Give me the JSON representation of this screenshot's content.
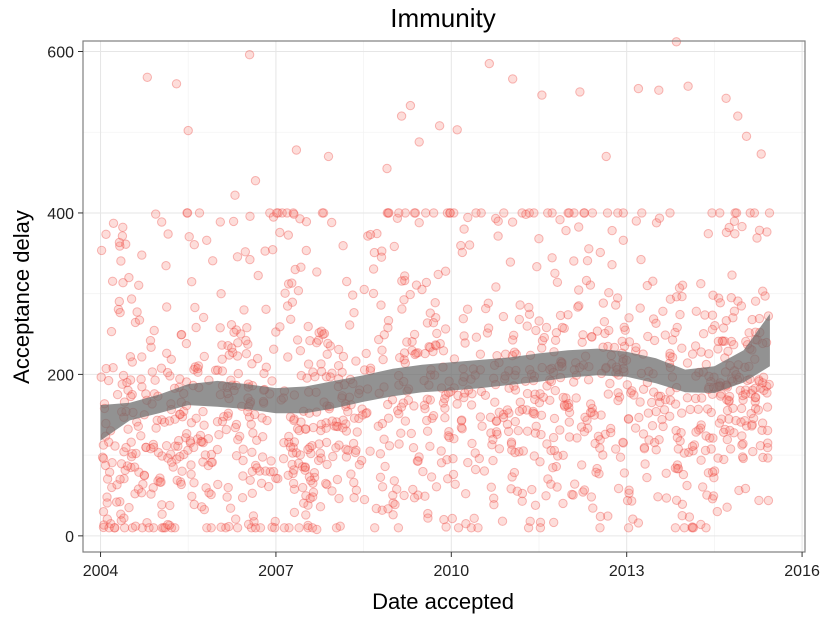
{
  "chart_data": {
    "type": "scatter",
    "title": "Immunity",
    "xlabel": "Date accepted",
    "ylabel": "Acceptance delay",
    "xlim": [
      2003.7,
      2016.05
    ],
    "ylim": [
      -20,
      613
    ],
    "x_ticks": [
      2004,
      2007,
      2010,
      2013,
      2016
    ],
    "y_ticks": [
      0,
      200,
      400,
      600
    ],
    "grid": true,
    "point_color": "#f8766d",
    "ribbon_color": "#6e6e6e",
    "x_start": 2004.0,
    "x_end": 2015.45,
    "n_points": 1350,
    "smooth": {
      "x": [
        2004.0,
        2004.5,
        2005.0,
        2005.5,
        2006.0,
        2006.5,
        2007.0,
        2007.5,
        2008.0,
        2008.5,
        2009.0,
        2009.5,
        2010.0,
        2010.5,
        2011.0,
        2011.5,
        2012.0,
        2012.5,
        2013.0,
        2013.5,
        2014.0,
        2014.5,
        2015.0,
        2015.45
      ],
      "lower": [
        118,
        143,
        152,
        162,
        160,
        157,
        152,
        152,
        158,
        166,
        173,
        178,
        180,
        183,
        187,
        191,
        196,
        199,
        197,
        189,
        178,
        177,
        190,
        210
      ],
      "upper": [
        162,
        165,
        175,
        188,
        192,
        188,
        183,
        185,
        192,
        199,
        207,
        212,
        215,
        218,
        221,
        226,
        230,
        232,
        228,
        220,
        206,
        210,
        230,
        275
      ]
    },
    "highlights": [
      {
        "x": 2004.8,
        "y": 568
      },
      {
        "x": 2005.3,
        "y": 560
      },
      {
        "x": 2005.5,
        "y": 502
      },
      {
        "x": 2006.55,
        "y": 596
      },
      {
        "x": 2006.65,
        "y": 440
      },
      {
        "x": 2006.3,
        "y": 422
      },
      {
        "x": 2007.35,
        "y": 478
      },
      {
        "x": 2007.9,
        "y": 470
      },
      {
        "x": 2008.9,
        "y": 455
      },
      {
        "x": 2009.15,
        "y": 520
      },
      {
        "x": 2009.3,
        "y": 533
      },
      {
        "x": 2009.45,
        "y": 488
      },
      {
        "x": 2009.8,
        "y": 508
      },
      {
        "x": 2010.1,
        "y": 503
      },
      {
        "x": 2010.65,
        "y": 585
      },
      {
        "x": 2011.05,
        "y": 566
      },
      {
        "x": 2011.55,
        "y": 546
      },
      {
        "x": 2012.2,
        "y": 550
      },
      {
        "x": 2012.65,
        "y": 470
      },
      {
        "x": 2013.2,
        "y": 554
      },
      {
        "x": 2013.55,
        "y": 552
      },
      {
        "x": 2013.85,
        "y": 612
      },
      {
        "x": 2014.05,
        "y": 557
      },
      {
        "x": 2014.7,
        "y": 542
      },
      {
        "x": 2014.9,
        "y": 520
      },
      {
        "x": 2015.05,
        "y": 495
      },
      {
        "x": 2015.3,
        "y": 473
      },
      {
        "x": 2004.4,
        "y": 22
      },
      {
        "x": 2004.6,
        "y": 12
      },
      {
        "x": 2005.15,
        "y": 14
      },
      {
        "x": 2007.7,
        "y": 8
      },
      {
        "x": 2008.1,
        "y": 12
      },
      {
        "x": 2009.6,
        "y": 22
      },
      {
        "x": 2010.25,
        "y": 15
      },
      {
        "x": 2011.35,
        "y": 18
      },
      {
        "x": 2012.55,
        "y": 24
      },
      {
        "x": 2013.2,
        "y": 16
      },
      {
        "x": 2013.95,
        "y": 25
      },
      {
        "x": 2014.55,
        "y": 30
      }
    ]
  }
}
